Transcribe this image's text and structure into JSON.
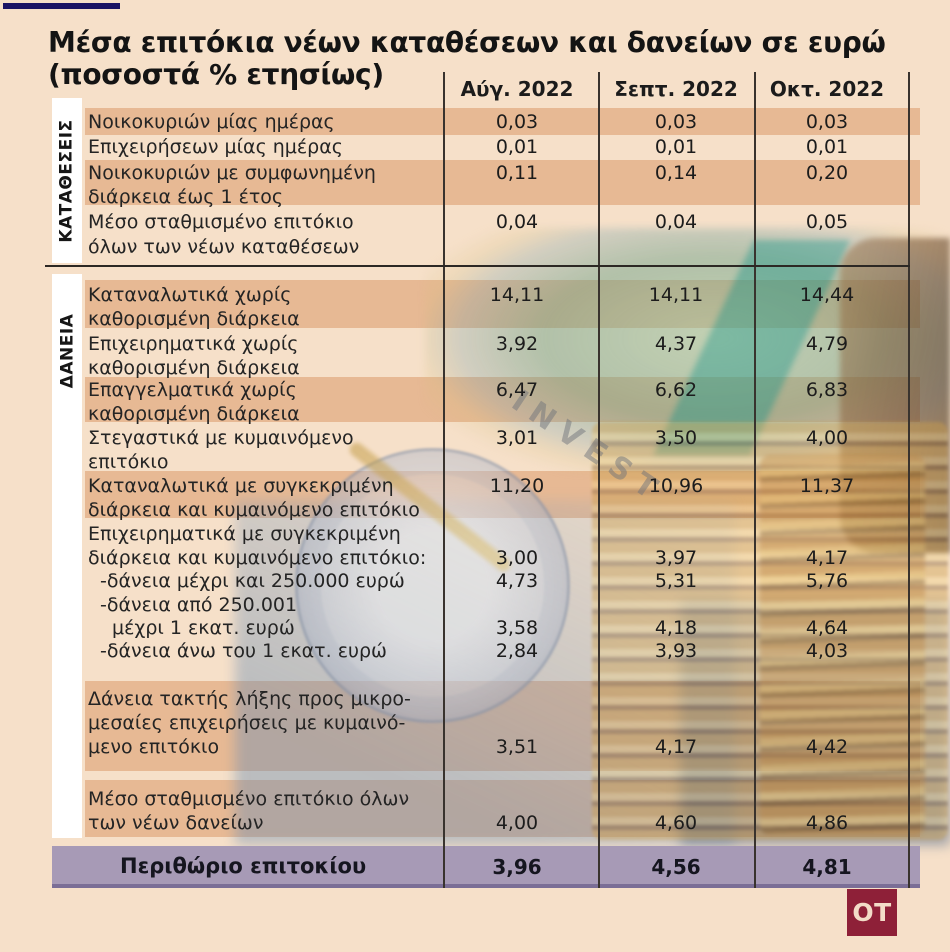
{
  "accent_bar_color": "#1b1464",
  "watermark": "INVEST",
  "logo": {
    "text": "OT",
    "background": "#8e2038",
    "text_color": "#f3dcc8"
  },
  "colors": {
    "page_background": "#f6e0c9",
    "row_shade": "#e7b994",
    "footer_band": "#a79ab6",
    "footer_band_border": "#7b6e96",
    "grid_line": "#39332e",
    "section_strip": "#ffffff"
  },
  "chart_data": {
    "type": "table",
    "title": "Μέσα επιτόκια νέων καταθέσεων και δανείων σε ευρώ",
    "subtitle": "(ποσοστά % ετησίως)",
    "columns": [
      "Αύγ. 2022",
      "Σεπτ. 2022",
      "Οκτ. 2022"
    ],
    "sections": [
      {
        "label": "ΚΑΤΑΘΕΣΕΙΣ",
        "rows": [
          {
            "lines": [
              {
                "text": "Νοικοκυριών μίας ημέρας",
                "values": [
                  "0,03",
                  "0,03",
                  "0,03"
                ]
              }
            ]
          },
          {
            "lines": [
              {
                "text": "Επιχειρήσεων μίας ημέρας",
                "values": [
                  "0,01",
                  "0,01",
                  "0,01"
                ]
              }
            ]
          },
          {
            "lines": [
              {
                "text": "Νοικοκυριών με συμφωνημένη",
                "values": [
                  "0,11",
                  "0,14",
                  "0,20"
                ]
              },
              {
                "text": "διάρκεια έως 1 έτος"
              }
            ]
          },
          {
            "lines": [
              {
                "text": "Μέσο σταθμισμένο επιτόκιο",
                "values": [
                  "0,04",
                  "0,04",
                  "0,05"
                ]
              },
              {
                "text": "όλων των νέων καταθέσεων"
              }
            ]
          }
        ]
      },
      {
        "label": "ΔΑΝΕΙΑ",
        "rows": [
          {
            "lines": [
              {
                "text": "Καταναλωτικά χωρίς",
                "values": [
                  "14,11",
                  "14,11",
                  "14,44"
                ]
              },
              {
                "text": "καθορισμένη διάρκεια"
              }
            ]
          },
          {
            "lines": [
              {
                "text": "Επιχειρηματικά χωρίς",
                "values": [
                  "3,92",
                  "4,37",
                  "4,79"
                ]
              },
              {
                "text": "καθορισμένη διάρκεια"
              }
            ]
          },
          {
            "lines": [
              {
                "text": "Επαγγελματικά χωρίς",
                "values": [
                  "6,47",
                  "6,62",
                  "6,83"
                ]
              },
              {
                "text": "καθορισμένη διάρκεια"
              }
            ]
          },
          {
            "lines": [
              {
                "text": "Στεγαστικά με κυμαινόμενο",
                "values": [
                  "3,01",
                  "3,50",
                  "4,00"
                ]
              },
              {
                "text": "επιτόκιο"
              }
            ]
          },
          {
            "lines": [
              {
                "text": "Καταναλωτικά με συγκεκριμένη",
                "values": [
                  "11,20",
                  "10,96",
                  "11,37"
                ]
              },
              {
                "text": "διάρκεια και κυμαινόμενο επιτόκιο"
              }
            ]
          },
          {
            "lines": [
              {
                "text": "Επιχειρηματικά με συγκεκριμένη"
              },
              {
                "text": "διάρκεια και κυμαινόμενο επιτόκιο:",
                "values": [
                  "3,00",
                  "3,97",
                  "4,17"
                ]
              },
              {
                "text": "-δάνεια μέχρι και 250.000 ευρώ",
                "values": [
                  "4,73",
                  "5,31",
                  "5,76"
                ]
              },
              {
                "text": "-δάνεια από 250.001"
              },
              {
                "text": "μέχρι 1 εκατ. ευρώ",
                "values": [
                  "3,58",
                  "4,18",
                  "4,64"
                ]
              },
              {
                "text": "-δάνεια άνω του 1 εκατ. ευρώ",
                "values": [
                  "2,84",
                  "3,93",
                  "4,03"
                ]
              }
            ]
          },
          {
            "lines": [
              {
                "text": "Δάνεια τακτής λήξης προς μικρο-"
              },
              {
                "text": "μεσαίες επιχειρήσεις με κυμαινό-"
              },
              {
                "text": "μενο επιτόκιο",
                "values": [
                  "3,51",
                  "4,17",
                  "4,42"
                ]
              }
            ]
          },
          {
            "lines": [
              {
                "text": "Μέσο σταθμισμένο επιτόκιο όλων"
              },
              {
                "text": "των νέων δανείων",
                "values": [
                  "4,00",
                  "4,60",
                  "4,86"
                ]
              }
            ]
          }
        ]
      }
    ],
    "footer": {
      "label": "Περιθώριο επιτοκίου",
      "values": [
        "3,96",
        "4,56",
        "4,81"
      ]
    }
  }
}
